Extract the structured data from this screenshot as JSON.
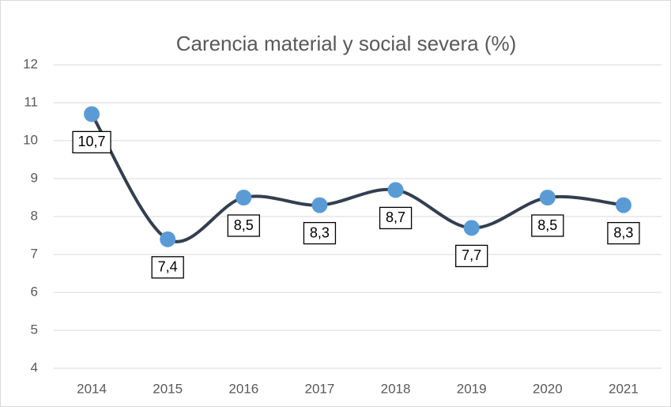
{
  "chart_data": {
    "type": "line",
    "title": "Carencia material y social severa (%)",
    "categories": [
      "2014",
      "2015",
      "2016",
      "2017",
      "2018",
      "2019",
      "2020",
      "2021"
    ],
    "values": [
      10.7,
      7.4,
      8.5,
      8.3,
      8.7,
      7.7,
      8.5,
      8.3
    ],
    "value_labels": [
      "10,7",
      "7,4",
      "8,5",
      "8,3",
      "8,7",
      "7,7",
      "8,5",
      "8,3"
    ],
    "color": "#333f50",
    "marker_color": "#5b9bd5",
    "smooth": true,
    "ylim": [
      4,
      12
    ],
    "yticks": [
      4,
      5,
      6,
      7,
      8,
      9,
      10,
      11,
      12
    ],
    "grid": true
  }
}
